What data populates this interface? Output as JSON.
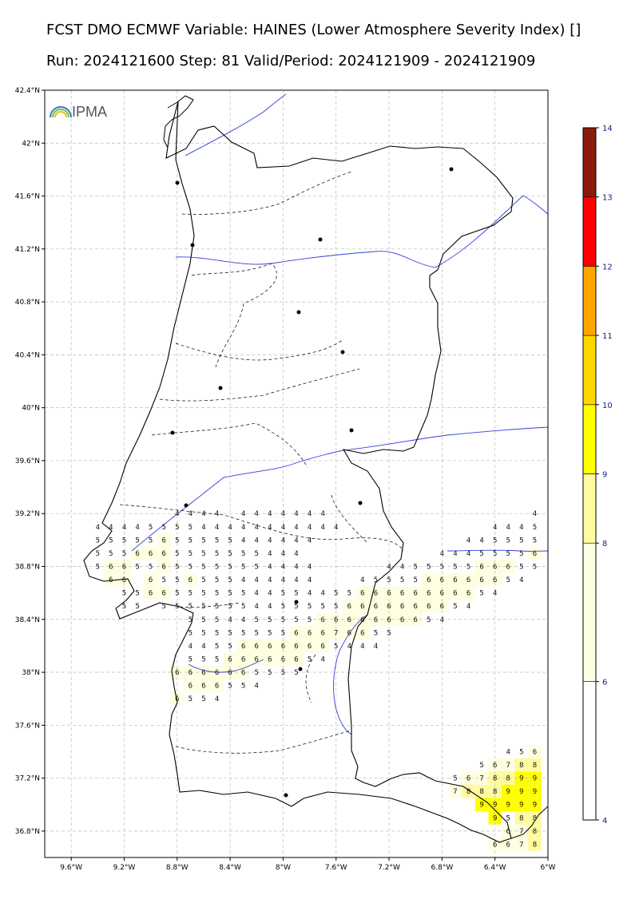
{
  "title": {
    "line1": "FCST DMO ECMWF Variable: HAINES (Lower Atmosphere Severity Index) []",
    "line2": "Run: 2024121600 Step: 81 Valid/Period: 2024121909 - 2024121909"
  },
  "logo": {
    "text": "IPMA",
    "icon": "rainbow-arc-icon"
  },
  "axes": {
    "lat_ticks": [
      "42.4°N",
      "42°N",
      "41.6°N",
      "41.2°N",
      "40.8°N",
      "40.4°N",
      "40°N",
      "39.6°N",
      "39.2°N",
      "38.8°N",
      "38.4°N",
      "38°N",
      "37.6°N",
      "37.2°N",
      "36.8°N"
    ],
    "lat_values": [
      42.4,
      42.0,
      41.6,
      41.2,
      40.8,
      40.4,
      40.0,
      39.6,
      39.2,
      38.8,
      38.4,
      38.0,
      37.6,
      37.2,
      36.8
    ],
    "lon_ticks": [
      "9.6°W",
      "9.2°W",
      "8.8°W",
      "8.4°W",
      "8°W",
      "7.6°W",
      "7.2°W",
      "6.8°W",
      "6.4°W",
      "6°W"
    ],
    "lon_values": [
      -9.6,
      -9.2,
      -8.8,
      -8.4,
      -8.0,
      -7.6,
      -7.2,
      -6.8,
      -6.4,
      -6.0
    ],
    "lat_range": [
      36.6,
      42.4
    ],
    "lon_range": [
      -9.8,
      -6.0
    ],
    "grid": true
  },
  "colorbar": {
    "ticks": [
      "4",
      "6",
      "8",
      "9",
      "10",
      "11",
      "12",
      "13",
      "14"
    ],
    "colors": [
      "#ffffff",
      "#fefee0",
      "#fffaa0",
      "#ffff00",
      "#ffd700",
      "#ffa500",
      "#ff0000",
      "#8b1a0a"
    ],
    "bounds": [
      4,
      6,
      8,
      9,
      10,
      11,
      12,
      13,
      14
    ]
  },
  "chart_data": {
    "type": "heatmap",
    "variable": "HAINES",
    "grid_step_deg": 0.1,
    "cells": [
      {
        "lat": 39.2,
        "lons": [
          -8.8,
          -8.7,
          -8.6,
          -8.5,
          -8.3,
          -8.2,
          -8.1,
          -8.0,
          -7.9,
          -7.8,
          -7.7,
          -6.1
        ],
        "values": [
          4,
          4,
          4,
          4,
          4,
          4,
          4,
          4,
          4,
          4,
          4,
          4
        ]
      },
      {
        "lat": 39.1,
        "lons": [
          -9.4,
          -9.3,
          -9.2,
          -9.1,
          -9.0,
          -8.9,
          -8.8,
          -8.7,
          -8.6,
          -8.5,
          -8.4,
          -8.3,
          -8.2,
          -8.1,
          -8.0,
          -7.9,
          -7.8,
          -7.7,
          -7.6,
          -6.4,
          -6.3,
          -6.2,
          -6.1
        ],
        "values": [
          4,
          4,
          4,
          4,
          5,
          5,
          5,
          5,
          4,
          4,
          4,
          4,
          4,
          4,
          4,
          4,
          4,
          4,
          4,
          4,
          4,
          4,
          5
        ]
      },
      {
        "lat": 39.0,
        "lons": [
          -9.4,
          -9.3,
          -9.2,
          -9.1,
          -9.0,
          -8.9,
          -8.8,
          -8.7,
          -8.6,
          -8.5,
          -8.4,
          -8.3,
          -8.2,
          -8.1,
          -8.0,
          -7.9,
          -7.8,
          -6.6,
          -6.5,
          -6.4,
          -6.3,
          -6.2,
          -6.1
        ],
        "values": [
          5,
          5,
          5,
          5,
          5,
          6,
          5,
          5,
          5,
          5,
          5,
          4,
          4,
          4,
          4,
          4,
          4,
          4,
          4,
          5,
          5,
          5,
          5
        ]
      },
      {
        "lat": 38.9,
        "lons": [
          -9.4,
          -9.3,
          -9.2,
          -9.1,
          -9.0,
          -8.9,
          -8.8,
          -8.7,
          -8.6,
          -8.5,
          -8.4,
          -8.3,
          -8.2,
          -8.1,
          -8.0,
          -7.9,
          -6.8,
          -6.7,
          -6.6,
          -6.5,
          -6.4,
          -6.3,
          -6.2,
          -6.1
        ],
        "values": [
          5,
          5,
          5,
          6,
          6,
          6,
          5,
          5,
          5,
          5,
          5,
          5,
          5,
          4,
          4,
          4,
          4,
          4,
          4,
          5,
          5,
          5,
          5,
          6
        ]
      },
      {
        "lat": 38.8,
        "lons": [
          -9.4,
          -9.3,
          -9.2,
          -9.1,
          -9.0,
          -8.9,
          -8.8,
          -8.7,
          -8.6,
          -8.5,
          -8.4,
          -8.3,
          -8.2,
          -8.1,
          -8.0,
          -7.9,
          -7.8,
          -7.2,
          -7.1,
          -7.0,
          -6.9,
          -6.8,
          -6.7,
          -6.6,
          -6.5,
          -6.4,
          -6.3,
          -6.2,
          -6.1
        ],
        "values": [
          5,
          6,
          6,
          5,
          5,
          6,
          5,
          5,
          5,
          5,
          5,
          5,
          5,
          4,
          4,
          4,
          4,
          4,
          4,
          5,
          5,
          5,
          5,
          5,
          6,
          6,
          6,
          5,
          5
        ]
      },
      {
        "lat": 38.7,
        "lons": [
          -9.3,
          -9.2,
          -9.0,
          -8.9,
          -8.8,
          -8.7,
          -8.6,
          -8.5,
          -8.4,
          -8.3,
          -8.2,
          -8.1,
          -8.0,
          -7.9,
          -7.8,
          -7.4,
          -7.3,
          -7.2,
          -7.1,
          -7.0,
          -6.9,
          -6.8,
          -6.7,
          -6.6,
          -6.5,
          -6.4,
          -6.3,
          -6.2
        ],
        "values": [
          6,
          6,
          6,
          5,
          5,
          6,
          5,
          5,
          5,
          4,
          4,
          4,
          4,
          4,
          4,
          4,
          5,
          5,
          5,
          5,
          6,
          6,
          6,
          6,
          6,
          6,
          5,
          4
        ]
      },
      {
        "lat": 38.6,
        "lons": [
          -9.2,
          -9.1,
          -9.0,
          -8.9,
          -8.8,
          -8.7,
          -8.6,
          -8.5,
          -8.4,
          -8.3,
          -8.2,
          -8.1,
          -8.0,
          -7.9,
          -7.8,
          -7.7,
          -7.6,
          -7.5,
          -7.4,
          -7.3,
          -7.2,
          -7.1,
          -7.0,
          -6.9,
          -6.8,
          -6.7,
          -6.6,
          -6.5,
          -6.4
        ],
        "values": [
          5,
          5,
          6,
          6,
          5,
          5,
          5,
          5,
          5,
          5,
          4,
          4,
          5,
          5,
          4,
          4,
          5,
          5,
          6,
          6,
          6,
          6,
          6,
          6,
          6,
          6,
          6,
          5,
          4
        ]
      },
      {
        "lat": 38.5,
        "lons": [
          -9.2,
          -9.1,
          -8.9,
          -8.8,
          -8.7,
          -8.6,
          -8.5,
          -8.4,
          -8.3,
          -8.2,
          -8.1,
          -8.0,
          -7.9,
          -7.8,
          -7.7,
          -7.6,
          -7.5,
          -7.4,
          -7.3,
          -7.2,
          -7.1,
          -7.0,
          -6.9,
          -6.8,
          -6.7,
          -6.6
        ],
        "values": [
          5,
          5,
          5,
          5,
          5,
          5,
          5,
          5,
          5,
          4,
          4,
          5,
          5,
          5,
          5,
          5,
          6,
          6,
          6,
          6,
          6,
          6,
          6,
          6,
          5,
          4
        ]
      },
      {
        "lat": 38.4,
        "lons": [
          -8.7,
          -8.6,
          -8.5,
          -8.4,
          -8.3,
          -8.2,
          -8.1,
          -8.0,
          -7.9,
          -7.8,
          -7.7,
          -7.6,
          -7.5,
          -7.4,
          -7.3,
          -7.2,
          -7.1,
          -7.0,
          -6.9,
          -6.8
        ],
        "values": [
          5,
          5,
          5,
          4,
          4,
          5,
          5,
          5,
          5,
          5,
          6,
          6,
          6,
          6,
          6,
          6,
          6,
          6,
          5,
          4
        ]
      },
      {
        "lat": 38.3,
        "lons": [
          -8.7,
          -8.6,
          -8.5,
          -8.4,
          -8.3,
          -8.2,
          -8.1,
          -8.0,
          -7.9,
          -7.8,
          -7.7,
          -7.6,
          -7.5,
          -7.4,
          -7.3,
          -7.2
        ],
        "values": [
          5,
          5,
          5,
          5,
          5,
          5,
          5,
          5,
          6,
          6,
          6,
          7,
          6,
          6,
          5,
          5
        ]
      },
      {
        "lat": 38.2,
        "lons": [
          -8.7,
          -8.6,
          -8.5,
          -8.4,
          -8.3,
          -8.2,
          -8.1,
          -8.0,
          -7.9,
          -7.8,
          -7.7,
          -7.6,
          -7.5,
          -7.4,
          -7.3
        ],
        "values": [
          4,
          4,
          5,
          5,
          6,
          6,
          6,
          6,
          6,
          6,
          6,
          5,
          4,
          4,
          4
        ]
      },
      {
        "lat": 38.1,
        "lons": [
          -8.7,
          -8.6,
          -8.5,
          -8.4,
          -8.3,
          -8.2,
          -8.1,
          -8.0,
          -7.9,
          -7.8,
          -7.7
        ],
        "values": [
          5,
          5,
          5,
          6,
          6,
          6,
          6,
          6,
          6,
          5,
          4
        ]
      },
      {
        "lat": 38.0,
        "lons": [
          -8.8,
          -8.7,
          -8.6,
          -8.5,
          -8.4,
          -8.3,
          -8.2,
          -8.1,
          -8.0,
          -7.9
        ],
        "values": [
          6,
          6,
          6,
          6,
          6,
          6,
          5,
          5,
          5,
          5
        ]
      },
      {
        "lat": 37.9,
        "lons": [
          -8.7,
          -8.6,
          -8.5,
          -8.4,
          -8.3,
          -8.2
        ],
        "values": [
          6,
          6,
          6,
          5,
          5,
          4
        ]
      },
      {
        "lat": 37.8,
        "lons": [
          -8.8,
          -8.7,
          -8.6,
          -8.5
        ],
        "values": [
          6,
          5,
          5,
          4
        ]
      },
      {
        "lat": 37.4,
        "lons": [
          -6.3,
          -6.2,
          -6.1
        ],
        "values": [
          4,
          5,
          6
        ]
      },
      {
        "lat": 37.3,
        "lons": [
          -6.5,
          -6.4,
          -6.3,
          -6.2,
          -6.1
        ],
        "values": [
          5,
          6,
          7,
          8,
          8
        ]
      },
      {
        "lat": 37.2,
        "lons": [
          -6.7,
          -6.6,
          -6.5,
          -6.4,
          -6.3,
          -6.2,
          -6.1
        ],
        "values": [
          5,
          6,
          7,
          8,
          8,
          9,
          9
        ]
      },
      {
        "lat": 37.1,
        "lons": [
          -6.7,
          -6.6,
          -6.5,
          -6.4,
          -6.3,
          -6.2,
          -6.1
        ],
        "values": [
          7,
          8,
          8,
          8,
          9,
          9,
          9
        ]
      },
      {
        "lat": 37.0,
        "lons": [
          -6.5,
          -6.4,
          -6.3,
          -6.2,
          -6.1
        ],
        "values": [
          9,
          9,
          9,
          9,
          9
        ]
      },
      {
        "lat": 36.9,
        "lons": [
          -6.4,
          -6.3,
          -6.2,
          -6.1
        ],
        "values": [
          9,
          5,
          8,
          8
        ]
      },
      {
        "lat": 36.8,
        "lons": [
          -6.3,
          -6.2,
          -6.1
        ],
        "values": [
          6,
          7,
          8
        ]
      },
      {
        "lat": 36.7,
        "lons": [
          -6.4,
          -6.3,
          -6.2,
          -6.1
        ],
        "values": [
          6,
          6,
          7,
          8
        ]
      }
    ]
  }
}
